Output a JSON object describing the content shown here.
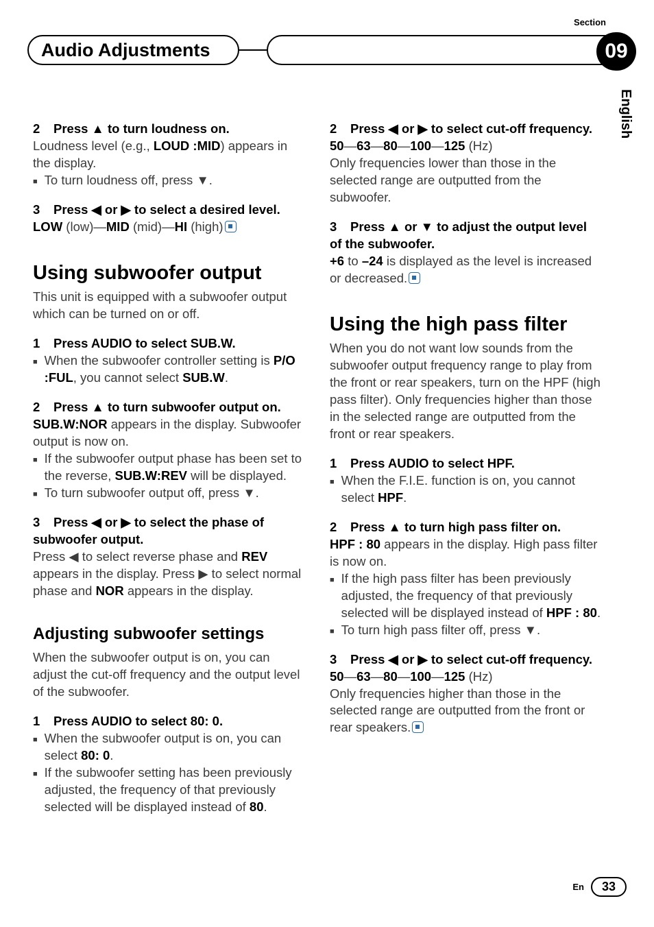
{
  "header": {
    "title": "Audio Adjustments",
    "section_label": "Section",
    "section_number": "09",
    "language": "English"
  },
  "left": {
    "s2_head_a": "2",
    "s2_head_b": "Press ▲ to turn loudness on.",
    "s2_body_a": "Loudness level (e.g., ",
    "s2_body_bold": "LOUD :MID",
    "s2_body_b": ") appears in the display.",
    "s2_bullet": "To turn loudness off, press ▼.",
    "s3_head_a": "3",
    "s3_head_b": "Press ◀ or ▶ to select a desired level.",
    "s3_body_low": "LOW",
    "s3_body_low2": " (low)—",
    "s3_body_mid": "MID",
    "s3_body_mid2": " (mid)—",
    "s3_body_hi": "HI",
    "s3_body_hi2": " (high)",
    "h2_sub": "Using subwoofer output",
    "sub_intro": "This unit is equipped with a subwoofer output which can be turned on or off.",
    "sub1_head_a": "1",
    "sub1_head_b": "Press AUDIO to select SUB.W.",
    "sub1_b1a": "When the subwoofer controller setting is ",
    "sub1_b1b": "P/O :FUL",
    "sub1_b1c": ", you cannot select ",
    "sub1_b1d": "SUB.W",
    "sub1_b1e": ".",
    "sub2_head_a": "2",
    "sub2_head_b": "Press ▲ to turn subwoofer output on.",
    "sub2_body_bold": "SUB.W:NOR",
    "sub2_body_rest": " appears in the display. Subwoofer output is now on.",
    "sub2_bul1a": "If the subwoofer output phase has been set to the reverse, ",
    "sub2_bul1b": "SUB.W:REV",
    "sub2_bul1c": " will be displayed.",
    "sub2_bul2": "To turn subwoofer output off, press ▼.",
    "sub3_head_a": "3",
    "sub3_head_b": "Press ◀ or ▶ to select the phase of subwoofer output.",
    "sub3_body_a": "Press ◀ to select reverse phase and ",
    "sub3_body_rev": "REV",
    "sub3_body_b": " appears in the display. Press ▶ to select normal phase and ",
    "sub3_body_nor": "NOR",
    "sub3_body_c": " appears in the display.",
    "h3_adj": "Adjusting subwoofer settings",
    "adj_intro": "When the subwoofer output is on, you can adjust the cut-off frequency and the output level of the subwoofer.",
    "adj1_head_a": "1",
    "adj1_head_b": "Press AUDIO to select 80: 0.",
    "adj1_b1a": "When the subwoofer output is on, you can select ",
    "adj1_b1b": "80: 0",
    "adj1_b1c": ".",
    "adj1_b2a": "If the subwoofer setting has been previously adjusted, the frequency of that previously selected will be displayed instead of ",
    "adj1_b2b": "80",
    "adj1_b2c": "."
  },
  "right": {
    "r2_head_a": "2",
    "r2_head_b": "Press ◀ or ▶ to select cut-off frequency.",
    "r2_freq_50": "50",
    "r2_d1": "—",
    "r2_freq_63": "63",
    "r2_d2": "—",
    "r2_freq_80": "80",
    "r2_d3": "—",
    "r2_freq_100": "100",
    "r2_d4": "—",
    "r2_freq_125": "125",
    "r2_hz": " (Hz)",
    "r2_body": "Only frequencies lower than those in the selected range are outputted from the subwoofer.",
    "r3_head_a": "3",
    "r3_head_b": "Press ▲ or ▼ to adjust the output level of the subwoofer.",
    "r3_body_p6": "+6",
    "r3_body_to": " to ",
    "r3_body_m24": "–24",
    "r3_body_rest": " is displayed as the level is increased or decreased.",
    "h2_hpf": "Using the high pass filter",
    "hpf_intro": "When you do not want low sounds from the subwoofer output frequency range to play from the front or rear speakers, turn on the HPF (high pass filter). Only frequencies higher than those in the selected range are outputted from the front or rear speakers.",
    "hpf1_head_a": "1",
    "hpf1_head_b": "Press AUDIO to select HPF.",
    "hpf1_b1a": "When the F.I.E. function is on, you cannot select ",
    "hpf1_b1b": "HPF",
    "hpf1_b1c": ".",
    "hpf2_head_a": "2",
    "hpf2_head_b": "Press ▲ to turn high pass filter on.",
    "hpf2_body_bold": "HPF : 80",
    "hpf2_body_rest": " appears in the display. High pass filter is now on.",
    "hpf2_b1a": "If the high pass filter has been previously adjusted, the frequency of that previously selected will be displayed instead of ",
    "hpf2_b1b": "HPF : 80",
    "hpf2_b1c": ".",
    "hpf2_b2": "To turn high pass filter off, press ▼.",
    "hpf3_head_a": "3",
    "hpf3_head_b": "Press ◀ or ▶ to select cut-off frequency.",
    "hpf3_body": "Only frequencies higher than those in the selected range are outputted from the front or rear speakers."
  },
  "footer": {
    "lang_short": "En",
    "page": "33"
  }
}
